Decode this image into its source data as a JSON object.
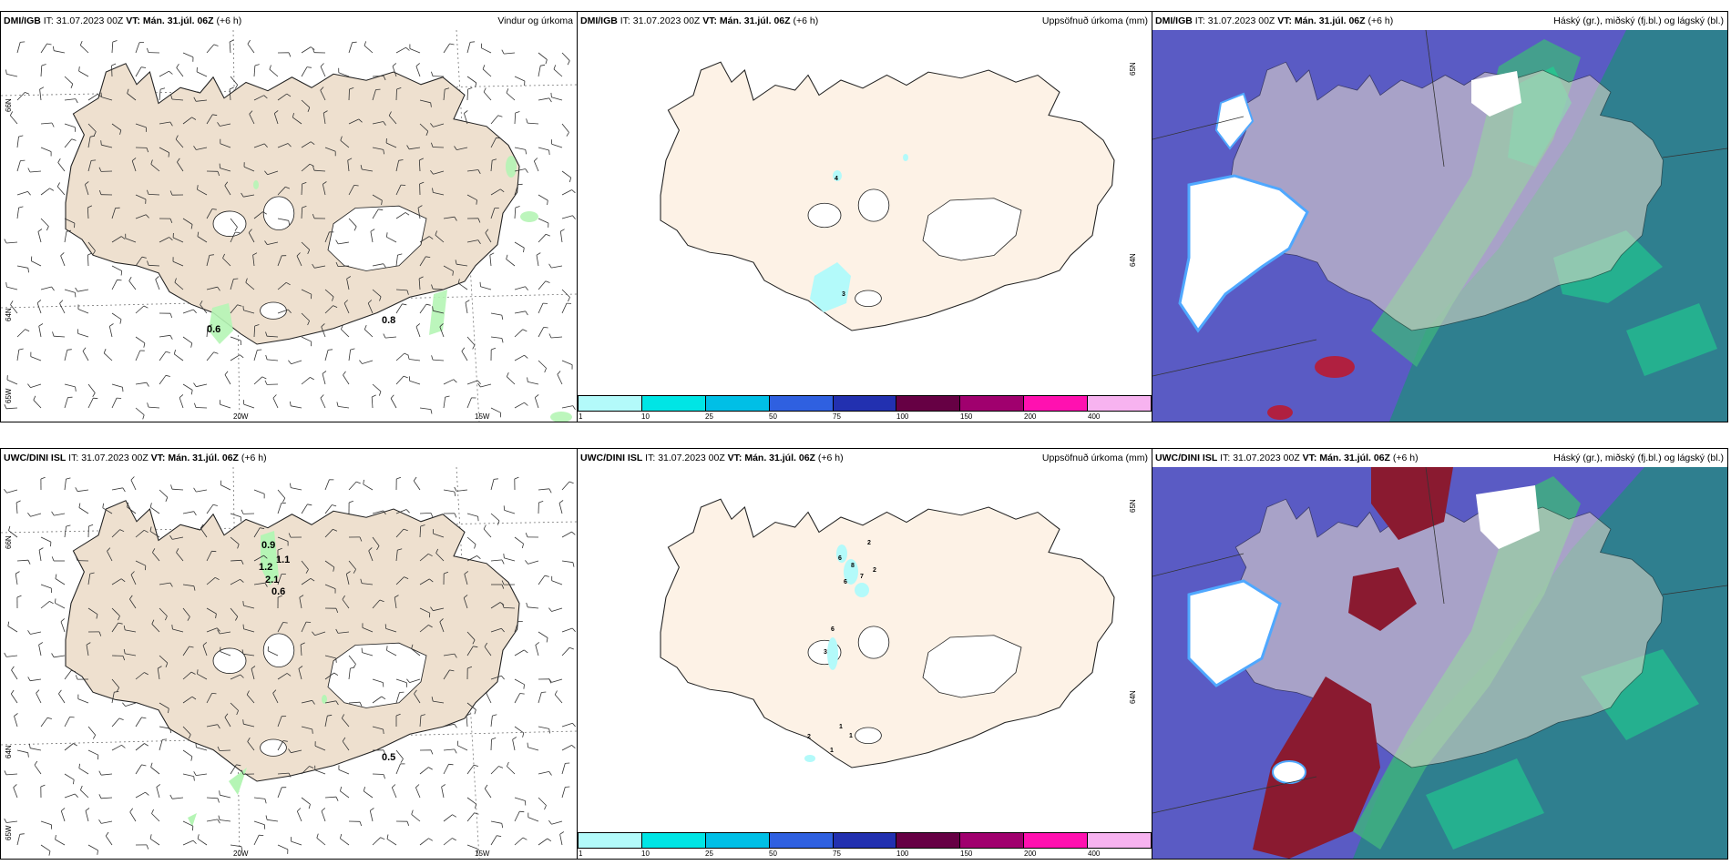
{
  "rows": [
    {
      "model": "DMI/IGB",
      "panels": [
        {
          "title": "Vindur og úrkoma",
          "values": [
            "0.6",
            "0.8"
          ]
        },
        {
          "title": "Uppsöfnuð úrkoma (mm)",
          "values": [
            "4",
            "3"
          ]
        },
        {
          "title": "Háský (gr.), miðský (fj.bl.) og lágský (bl.)"
        }
      ]
    },
    {
      "model": "UWC/DINI ISL",
      "panels": [
        {
          "title": "Vindur og úrkoma",
          "values": [
            "0.9",
            "1.1",
            "1.2",
            "2.1",
            "0.6",
            "0.5"
          ]
        },
        {
          "title": "Uppsöfnuð úrkoma (mm)",
          "values": [
            "2",
            "6",
            "8",
            "7",
            "2",
            "6",
            "6",
            "3",
            "1",
            "1",
            "2",
            "1"
          ]
        },
        {
          "title": "Háský (gr.), miðský (fj.bl.) og lágský (bl.)"
        }
      ]
    }
  ],
  "init_label": "IT:",
  "init_time": "31.07.2023 00Z",
  "valid_label": "VT: Mán. 31.júl. 06Z",
  "lead": "(+6 h)",
  "lat_labels": [
    "66N",
    "64N",
    "65W"
  ],
  "lat_labels_mid": [
    "65N",
    "64N"
  ],
  "lon_labels": [
    "20W",
    "15W"
  ],
  "colorbar": {
    "ticks": [
      "1",
      "10",
      "25",
      "50",
      "75",
      "100",
      "150",
      "200",
      "400"
    ],
    "colors": [
      "#b3fafa",
      "#00e5e5",
      "#00bfe6",
      "#2f60e0",
      "#2230b0",
      "#660044",
      "#a0006e",
      "#ff11b0",
      "#f7b3f0"
    ]
  },
  "colors": {
    "land": "#eee0cf",
    "land_light": "#fdf2e6",
    "ice": "#ffffff",
    "rain": "#b5f5b5",
    "precip": "#b3fafa",
    "sea_cloud": "#5a5bc4"
  }
}
